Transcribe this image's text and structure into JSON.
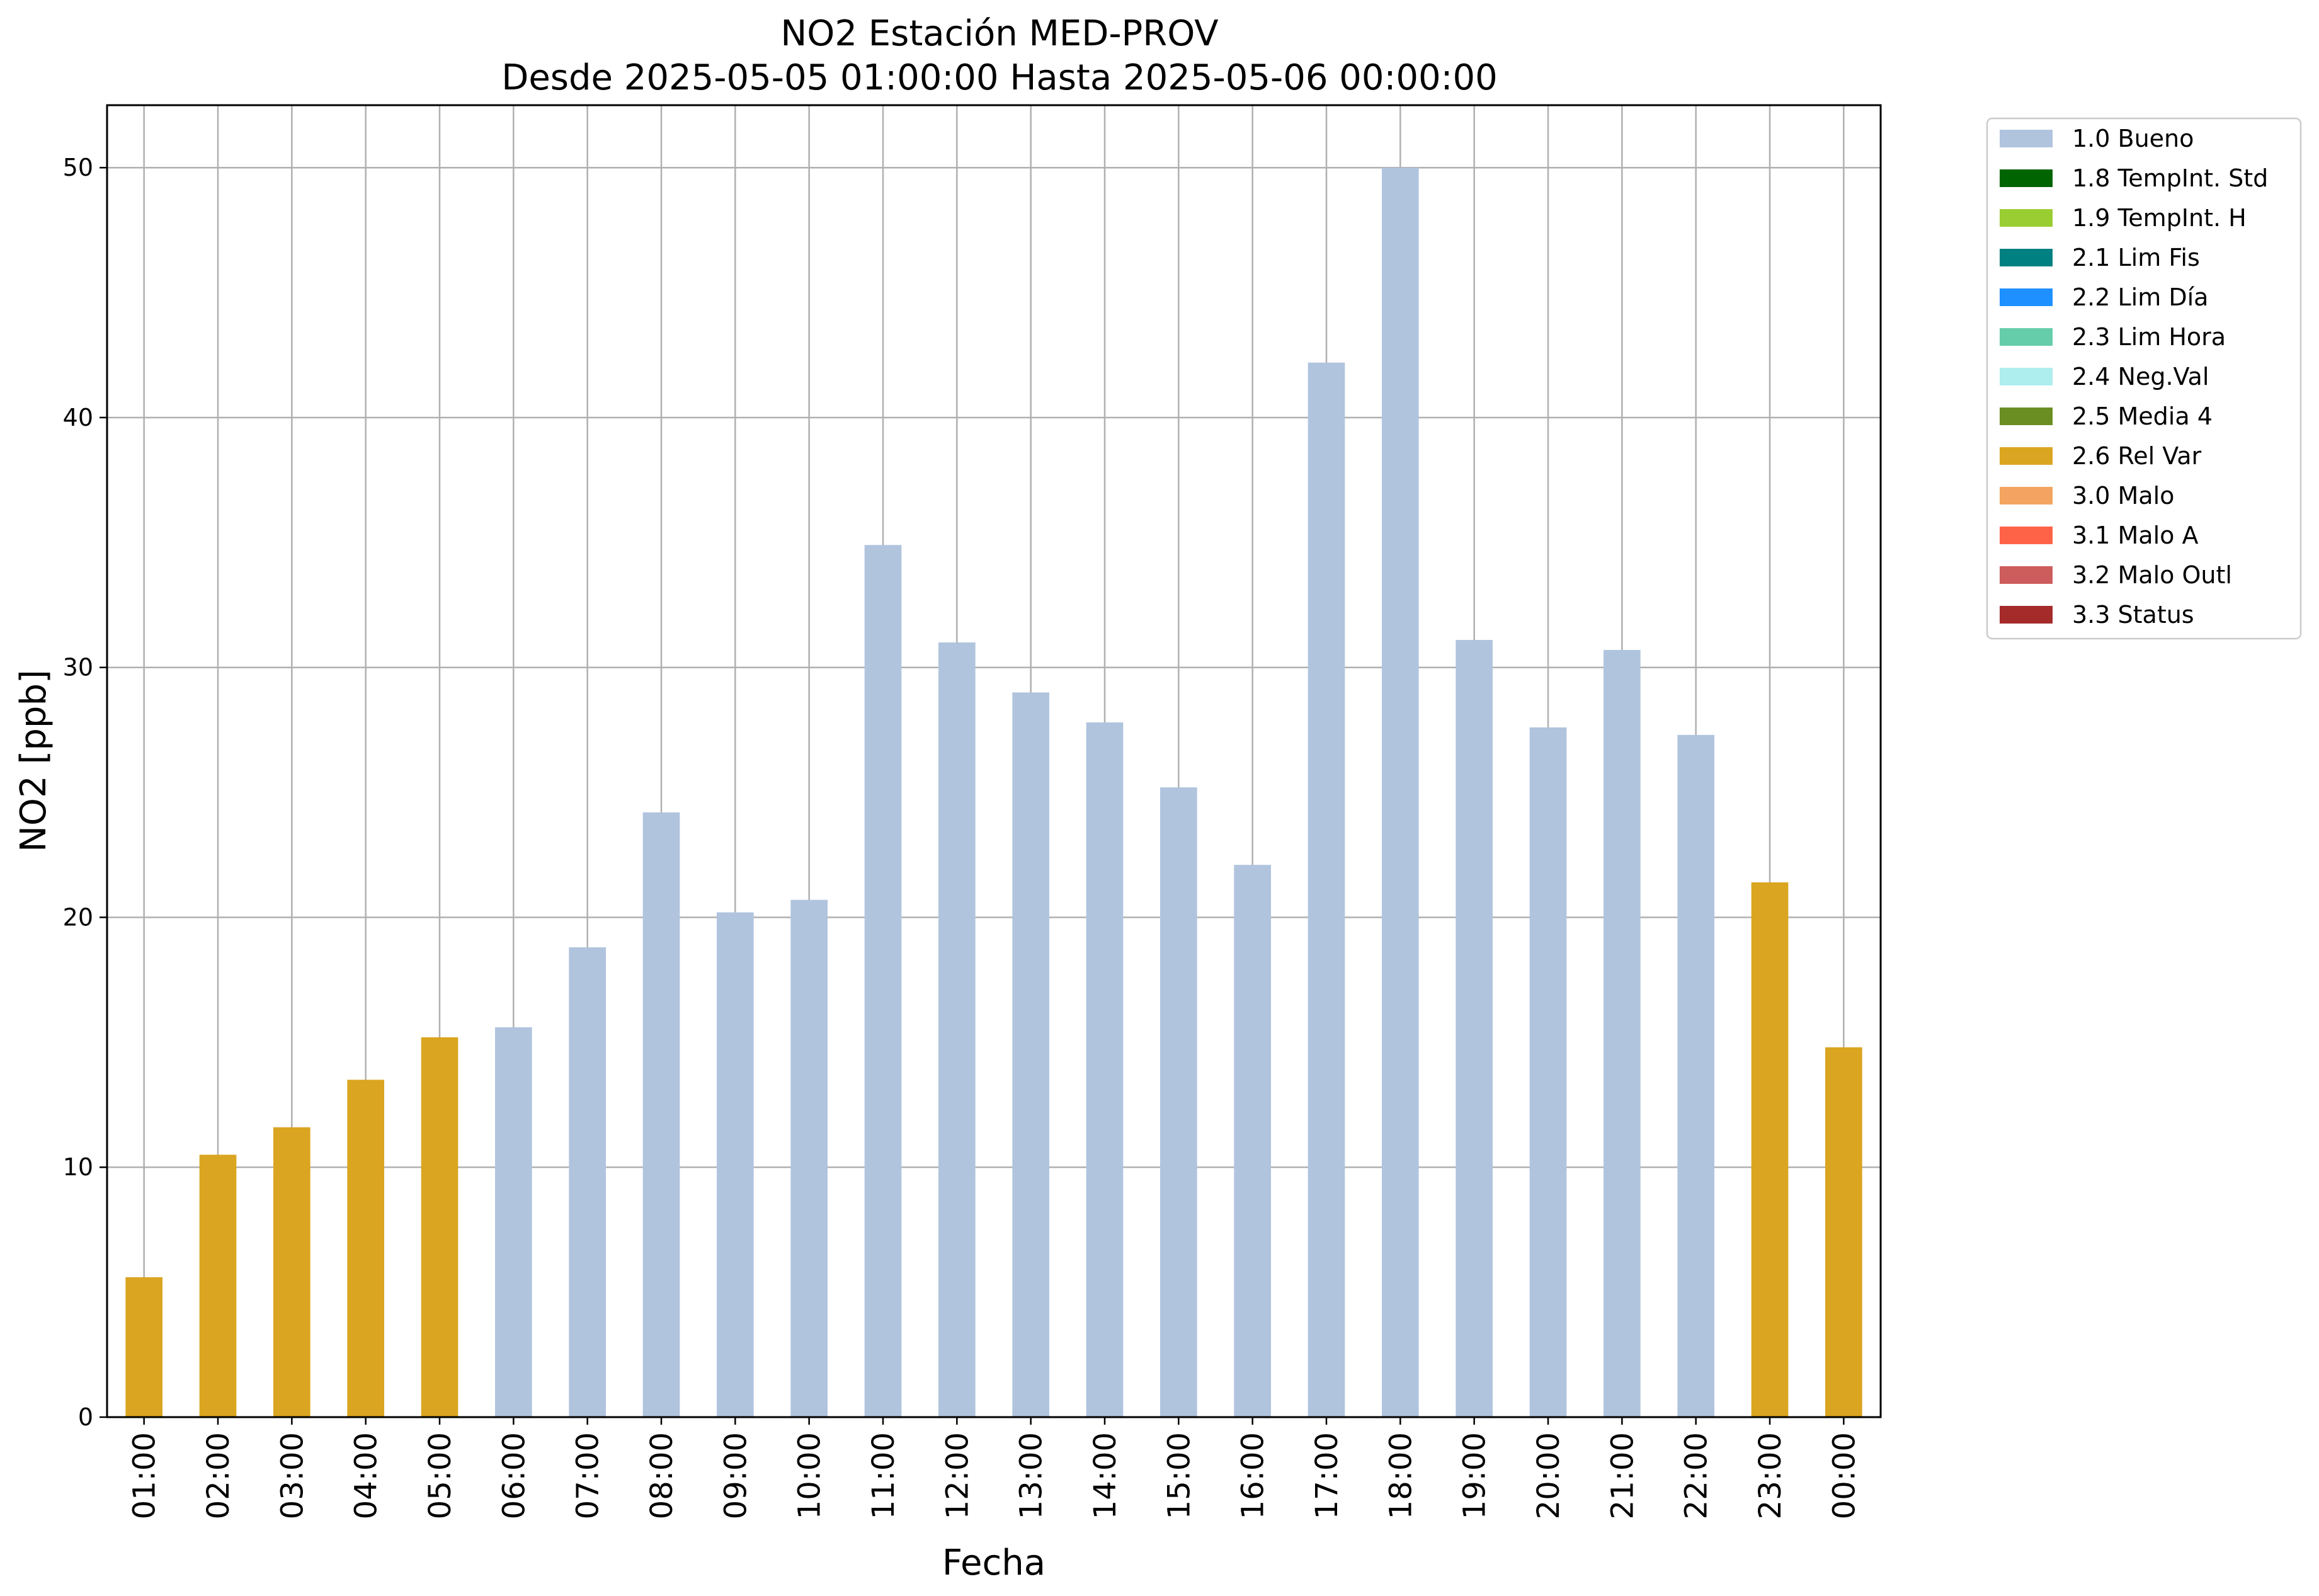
{
  "chart_data": {
    "type": "bar",
    "title": "NO2 Estación MED-PROV",
    "subtitle": "Desde 2025-05-05 01:00:00 Hasta 2025-05-06 00:00:00",
    "xlabel": "Fecha",
    "ylabel": "NO2 [ppb]",
    "ylim": [
      0,
      52.5
    ],
    "yticks": [
      "0",
      "10",
      "20",
      "30",
      "40",
      "50"
    ],
    "grid": true,
    "legend_position": "outside-top-right",
    "categories": [
      "01:00",
      "02:00",
      "03:00",
      "04:00",
      "05:00",
      "06:00",
      "07:00",
      "08:00",
      "09:00",
      "10:00",
      "11:00",
      "12:00",
      "13:00",
      "14:00",
      "15:00",
      "16:00",
      "17:00",
      "18:00",
      "19:00",
      "20:00",
      "21:00",
      "22:00",
      "23:00",
      "00:00"
    ],
    "values": [
      5.6,
      10.5,
      11.6,
      13.5,
      15.2,
      15.6,
      18.8,
      24.2,
      20.2,
      20.7,
      34.9,
      31.0,
      29.0,
      27.8,
      25.2,
      22.1,
      42.2,
      50.0,
      31.1,
      27.6,
      30.7,
      27.3,
      21.4,
      14.8
    ],
    "flags": [
      "2.6 Rel Var",
      "2.6 Rel Var",
      "2.6 Rel Var",
      "2.6 Rel Var",
      "2.6 Rel Var",
      "1.0 Bueno",
      "1.0 Bueno",
      "1.0 Bueno",
      "1.0 Bueno",
      "1.0 Bueno",
      "1.0 Bueno",
      "1.0 Bueno",
      "1.0 Bueno",
      "1.0 Bueno",
      "1.0 Bueno",
      "1.0 Bueno",
      "1.0 Bueno",
      "1.0 Bueno",
      "1.0 Bueno",
      "1.0 Bueno",
      "1.0 Bueno",
      "1.0 Bueno",
      "2.6 Rel Var",
      "2.6 Rel Var"
    ],
    "legend": [
      {
        "label": "1.0 Bueno",
        "color": "#b0c4de"
      },
      {
        "label": "1.8 TempInt. Std",
        "color": "#006400"
      },
      {
        "label": "1.9 TempInt. H",
        "color": "#9acd32"
      },
      {
        "label": "2.1 Lim Fis",
        "color": "#008080"
      },
      {
        "label": "2.2 Lim Día",
        "color": "#1e90ff"
      },
      {
        "label": "2.3 Lim Hora",
        "color": "#66cdaa"
      },
      {
        "label": "2.4 Neg.Val",
        "color": "#afeeee"
      },
      {
        "label": "2.5 Media 4",
        "color": "#6b8e23"
      },
      {
        "label": "2.6 Rel Var",
        "color": "#daa520"
      },
      {
        "label": "3.0 Malo",
        "color": "#f4a460"
      },
      {
        "label": "3.1 Malo A",
        "color": "#ff6347"
      },
      {
        "label": "3.2 Malo Outl",
        "color": "#cd5c5c"
      },
      {
        "label": "3.3 Status",
        "color": "#a52a2a"
      }
    ]
  }
}
